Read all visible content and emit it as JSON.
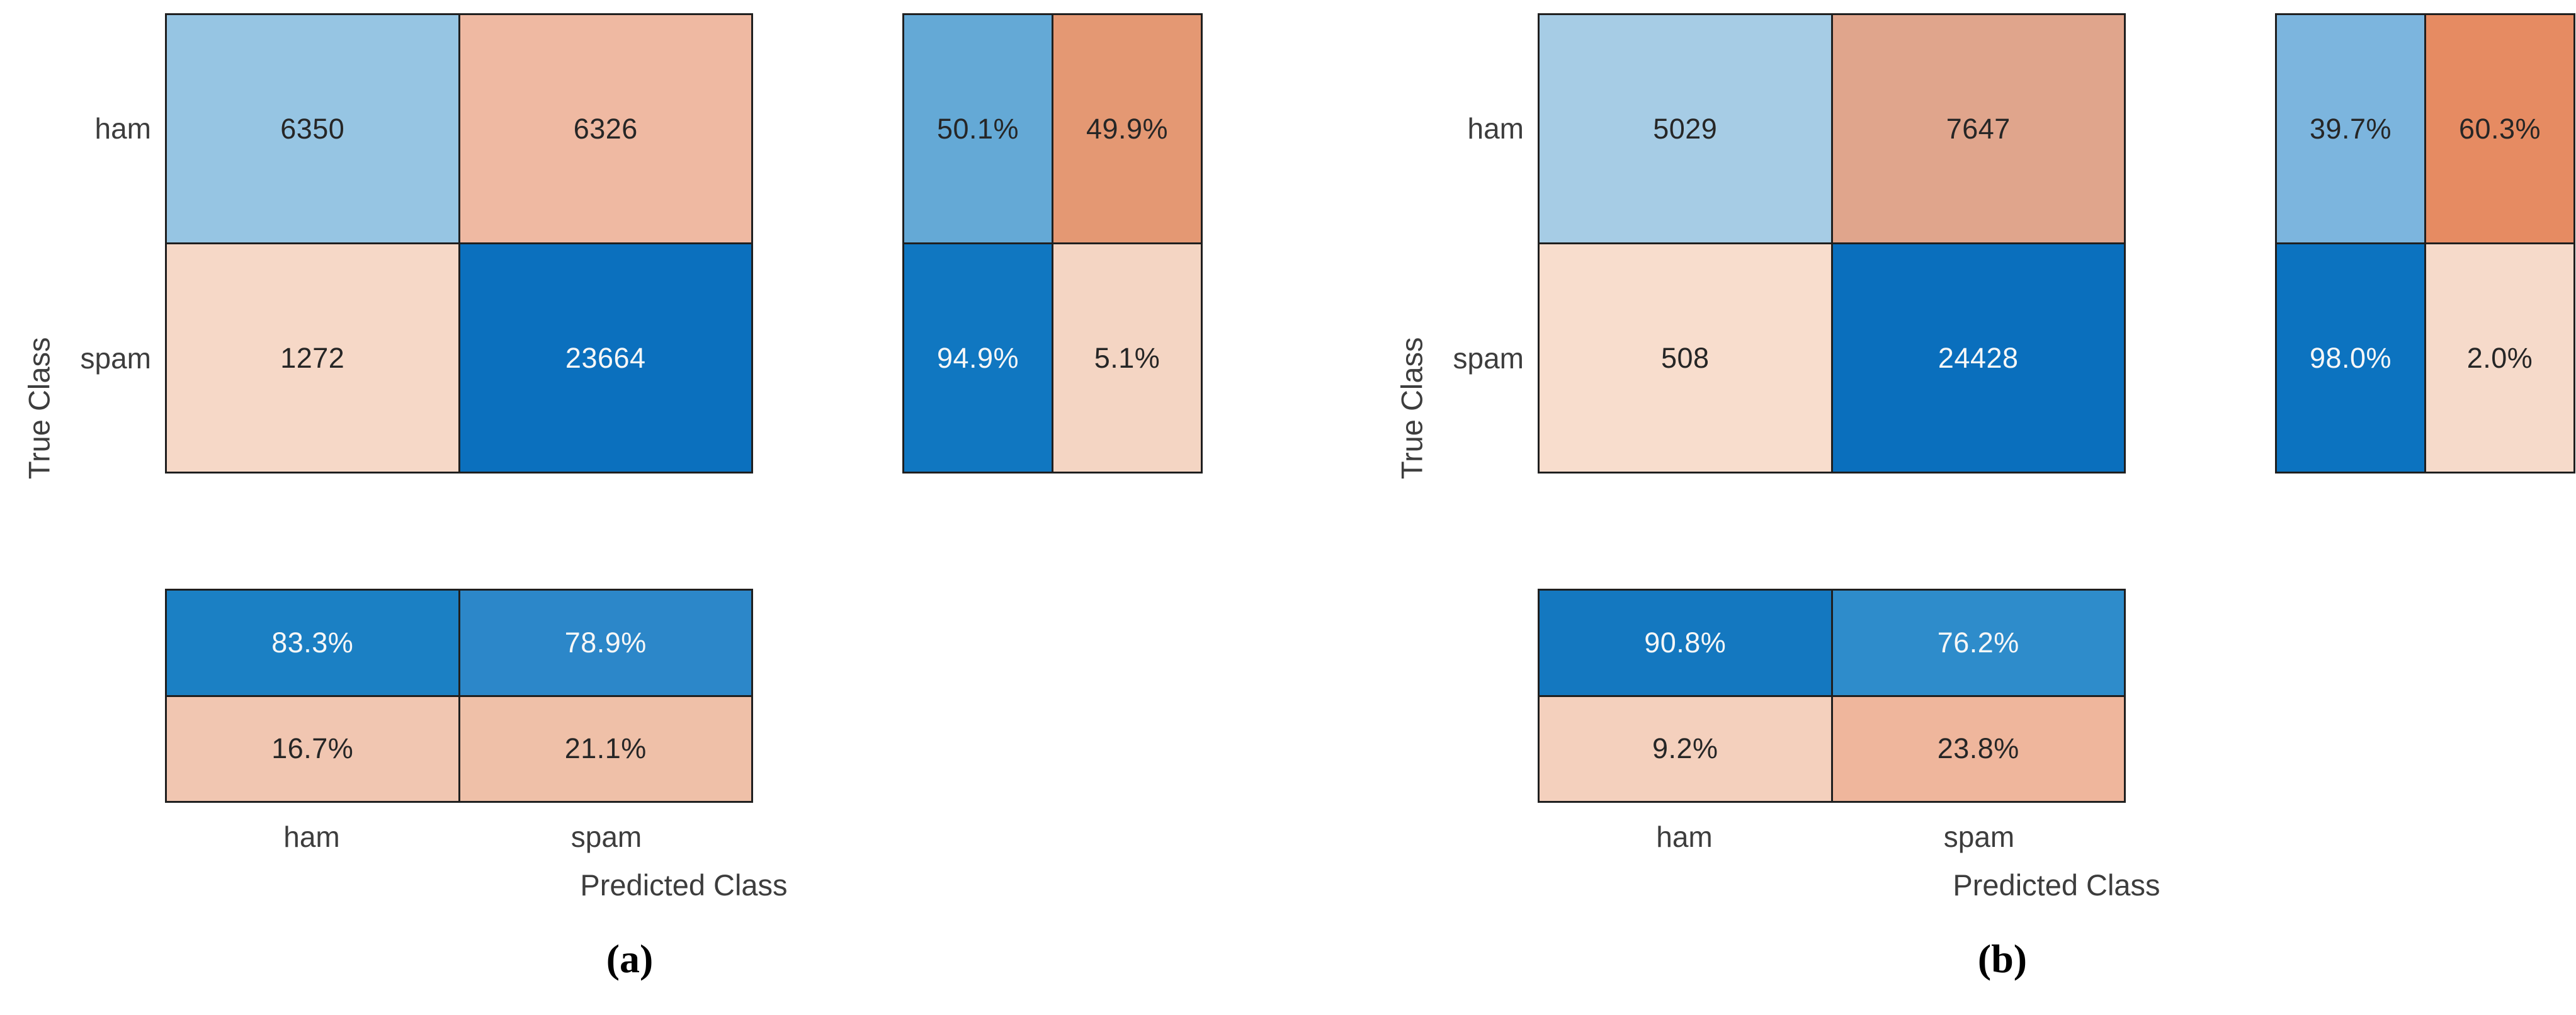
{
  "figure": {
    "background": "#ffffff",
    "grid_line_color": "#1f1f1f",
    "axis_text_color": "#3d3d3d"
  },
  "chart_data": [
    {
      "type": "heatmap",
      "title": "(a)",
      "classes": [
        "ham",
        "spam"
      ],
      "counts": [
        [
          6350,
          6326
        ],
        [
          1272,
          23664
        ]
      ],
      "row_summary_pct": [
        [
          50.1,
          49.9
        ],
        [
          94.9,
          5.1
        ]
      ],
      "column_summary_pct": [
        [
          83.3,
          78.9
        ],
        [
          16.7,
          21.1
        ]
      ],
      "xlabel": "Predicted Class",
      "ylabel": "True Class"
    },
    {
      "type": "heatmap",
      "title": "(b)",
      "classes": [
        "ham",
        "spam"
      ],
      "counts": [
        [
          5029,
          7647
        ],
        [
          508,
          24428
        ]
      ],
      "row_summary_pct": [
        [
          39.7,
          60.3
        ],
        [
          98.0,
          2.0
        ]
      ],
      "column_summary_pct": [
        [
          90.8,
          76.2
        ],
        [
          9.2,
          23.8
        ]
      ],
      "xlabel": "Predicted Class",
      "ylabel": "True Class"
    }
  ],
  "charts": [
    {
      "caption": "(a)",
      "y_axis_label": "True Class",
      "x_axis_label": "Predicted Class",
      "y_ticks": [
        "ham",
        "spam"
      ],
      "x_ticks": [
        "ham",
        "spam"
      ],
      "matrix": [
        [
          {
            "value": "6350",
            "bg": "#96c5e3",
            "fg": "#262626"
          },
          {
            "value": "6326",
            "bg": "#efb9a2",
            "fg": "#262626"
          }
        ],
        [
          {
            "value": "1272",
            "bg": "#f6d8c7",
            "fg": "#262626"
          },
          {
            "value": "23664",
            "bg": "#0b70be",
            "fg": "#f7f7f7"
          }
        ]
      ],
      "row_summary": [
        [
          {
            "value": "50.1%",
            "bg": "#64a9d6",
            "fg": "#262626"
          },
          {
            "value": "49.9%",
            "bg": "#e49873",
            "fg": "#262626"
          }
        ],
        [
          {
            "value": "94.9%",
            "bg": "#1077c1",
            "fg": "#f7f7f7"
          },
          {
            "value": "5.1%",
            "bg": "#f4d5c3",
            "fg": "#262626"
          }
        ]
      ],
      "col_summary": [
        [
          {
            "value": "83.3%",
            "bg": "#1b80c4",
            "fg": "#f7f7f7"
          },
          {
            "value": "78.9%",
            "bg": "#2c87c9",
            "fg": "#f7f7f7"
          }
        ],
        [
          {
            "value": "16.7%",
            "bg": "#f1c6b1",
            "fg": "#262626"
          },
          {
            "value": "21.1%",
            "bg": "#efc0a8",
            "fg": "#262626"
          }
        ]
      ]
    },
    {
      "caption": "(b)",
      "y_axis_label": "True Class",
      "x_axis_label": "Predicted Class",
      "y_ticks": [
        "ham",
        "spam"
      ],
      "x_ticks": [
        "ham",
        "spam"
      ],
      "matrix": [
        [
          {
            "value": "5029",
            "bg": "#a6cce5",
            "fg": "#262626"
          },
          {
            "value": "7647",
            "bg": "#e0a58c",
            "fg": "#262626"
          }
        ],
        [
          {
            "value": "508",
            "bg": "#f8ddcd",
            "fg": "#262626"
          },
          {
            "value": "24428",
            "bg": "#0a6fbd",
            "fg": "#f7f7f7"
          }
        ]
      ],
      "row_summary": [
        [
          {
            "value": "39.7%",
            "bg": "#7cb5de",
            "fg": "#262626"
          },
          {
            "value": "60.3%",
            "bg": "#e68b62",
            "fg": "#262626"
          }
        ],
        [
          {
            "value": "98.0%",
            "bg": "#0c73c0",
            "fg": "#f7f7f7"
          },
          {
            "value": "2.0%",
            "bg": "#f6daca",
            "fg": "#262626"
          }
        ]
      ],
      "col_summary": [
        [
          {
            "value": "90.8%",
            "bg": "#1478c0",
            "fg": "#f7f7f7"
          },
          {
            "value": "76.2%",
            "bg": "#2e8ccb",
            "fg": "#f7f7f7"
          }
        ],
        [
          {
            "value": "9.2%",
            "bg": "#f4d0bd",
            "fg": "#262626"
          },
          {
            "value": "23.8%",
            "bg": "#efb69c",
            "fg": "#262626"
          }
        ]
      ]
    }
  ]
}
